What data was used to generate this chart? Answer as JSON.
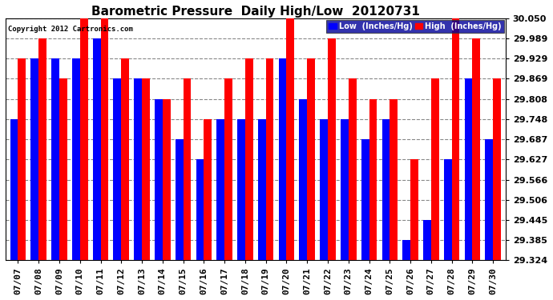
{
  "title": "Barometric Pressure  Daily High/Low  20120731",
  "copyright": "Copyright 2012 Cartronics.com",
  "dates": [
    "07/07",
    "07/08",
    "07/09",
    "07/10",
    "07/11",
    "07/12",
    "07/13",
    "07/14",
    "07/15",
    "07/16",
    "07/17",
    "07/18",
    "07/19",
    "07/20",
    "07/21",
    "07/22",
    "07/23",
    "07/24",
    "07/25",
    "07/26",
    "07/27",
    "07/28",
    "07/29",
    "07/30"
  ],
  "low_values": [
    29.748,
    29.929,
    29.929,
    29.929,
    29.989,
    29.869,
    29.869,
    29.808,
    29.687,
    29.627,
    29.748,
    29.748,
    29.748,
    29.929,
    29.808,
    29.748,
    29.748,
    29.687,
    29.748,
    29.384,
    29.445,
    29.627,
    29.869,
    29.687
  ],
  "high_values": [
    29.929,
    29.989,
    29.869,
    30.05,
    30.05,
    29.929,
    29.869,
    29.808,
    29.869,
    29.748,
    29.869,
    29.929,
    29.929,
    30.05,
    29.929,
    29.989,
    29.869,
    29.808,
    29.808,
    29.627,
    29.869,
    30.05,
    29.989,
    29.869
  ],
  "ymin": 29.324,
  "ymax": 30.05,
  "yticks": [
    29.324,
    29.385,
    29.445,
    29.506,
    29.566,
    29.627,
    29.687,
    29.748,
    29.808,
    29.869,
    29.929,
    29.989,
    30.05
  ],
  "low_color": "#0000ff",
  "high_color": "#ff0000",
  "bg_color": "#ffffff",
  "grid_color": "#888888",
  "title_fontsize": 11,
  "tick_fontsize": 8,
  "bar_width": 0.38
}
